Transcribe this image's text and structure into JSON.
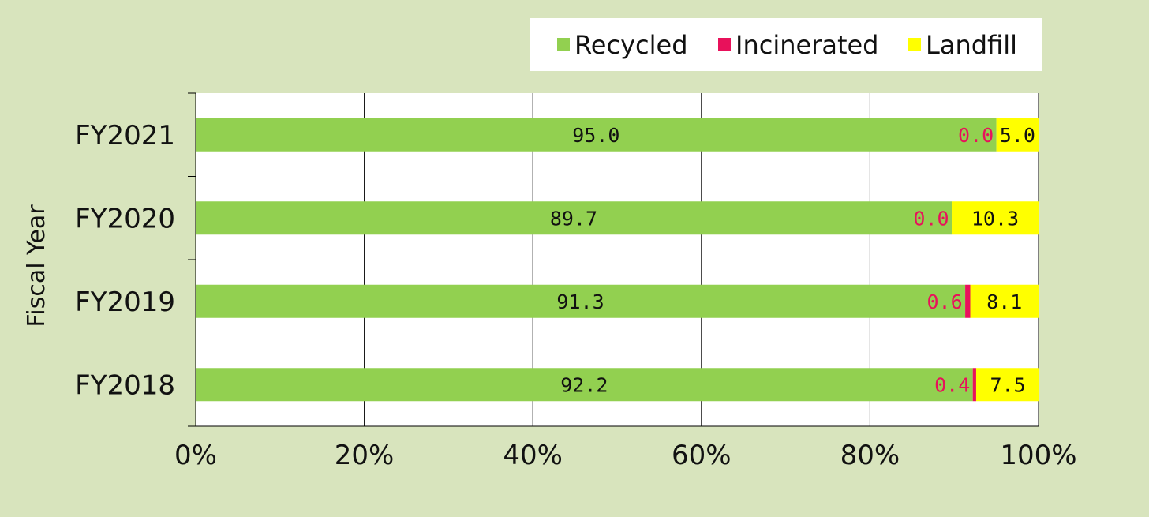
{
  "chart_data": {
    "type": "bar",
    "orientation": "horizontal",
    "stacked": "percent",
    "categories": [
      "FY2018",
      "FY2019",
      "FY2020",
      "FY2021"
    ],
    "series": [
      {
        "name": "Recycled",
        "color": "#92d050",
        "label_color": "#111111",
        "values": [
          92.2,
          91.3,
          89.7,
          95.0
        ]
      },
      {
        "name": "Incinerated",
        "color": "#e8115b",
        "label_color": "#e8115b",
        "values": [
          0.4,
          0.6,
          0.0,
          0.0
        ]
      },
      {
        "name": "Landfill",
        "color": "#ffff00",
        "label_color": "#111111",
        "values": [
          7.5,
          8.1,
          10.3,
          5.0
        ]
      }
    ],
    "xticks": [
      "0%",
      "20%",
      "40%",
      "60%",
      "80%",
      "100%"
    ],
    "xlim": [
      0,
      100
    ],
    "ylabel": "Fiscal Year",
    "grid": "vertical",
    "legend_position": "top-right",
    "background_color": "#d8e4bd",
    "plot_background_color": "#ffffff"
  }
}
